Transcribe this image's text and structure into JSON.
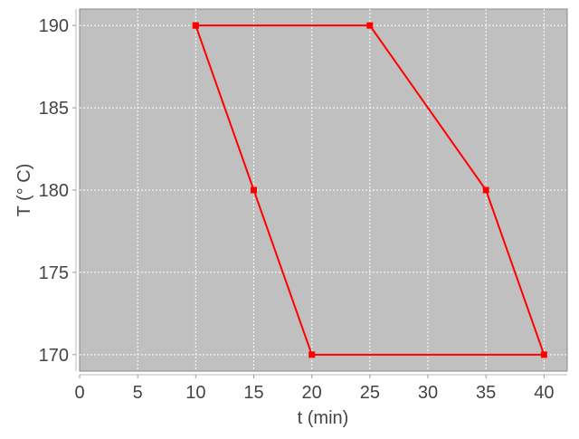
{
  "chart_data": {
    "type": "line",
    "title": "",
    "xlabel": "t (min)",
    "ylabel": "T (° C)",
    "xlim": [
      0,
      42
    ],
    "ylim": [
      169,
      191
    ],
    "xticks": [
      0,
      5,
      10,
      15,
      20,
      25,
      30,
      35,
      40
    ],
    "yticks": [
      170,
      175,
      180,
      185,
      190
    ],
    "grid": true,
    "legend": "none",
    "background_color": "#c0c0c0",
    "series": [
      {
        "color": "#ff0000",
        "marker": "square",
        "x": [
          10,
          25,
          35,
          40,
          20,
          15,
          10
        ],
        "y": [
          190,
          190,
          180,
          170,
          170,
          180,
          190
        ]
      }
    ]
  }
}
